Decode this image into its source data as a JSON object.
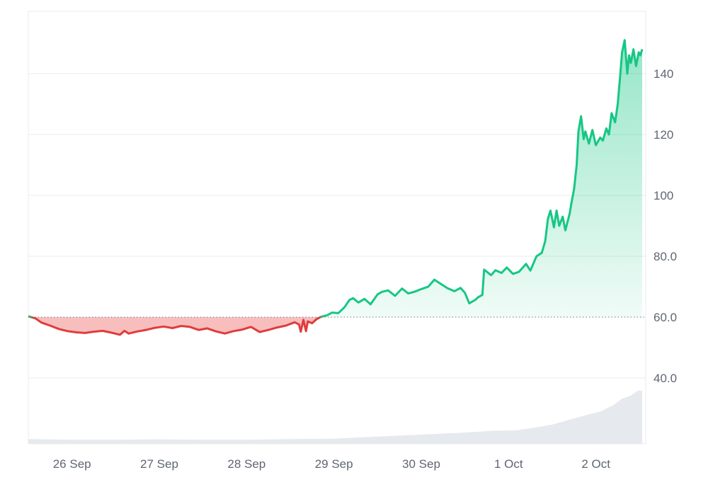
{
  "chart_data": {
    "type": "area",
    "title": "",
    "xlabel": "",
    "ylabel": "",
    "baseline": 60.0,
    "ylim": [
      21,
      152
    ],
    "grid": true,
    "legend": "none",
    "x_ticks": [
      {
        "label": "26 Sep",
        "t": 0.5
      },
      {
        "label": "27 Sep",
        "t": 1.5
      },
      {
        "label": "28 Sep",
        "t": 2.5
      },
      {
        "label": "29 Sep",
        "t": 3.5
      },
      {
        "label": "30 Sep",
        "t": 4.5
      },
      {
        "label": "1 Oct",
        "t": 5.5
      },
      {
        "label": "2 Oct",
        "t": 6.5
      }
    ],
    "y_ticks": [
      {
        "label": "140",
        "value": 140
      },
      {
        "label": "120",
        "value": 120
      },
      {
        "label": "100",
        "value": 100
      },
      {
        "label": "80.0",
        "value": 80
      },
      {
        "label": "60.0",
        "value": 60
      },
      {
        "label": "40.0",
        "value": 40
      }
    ],
    "xlim_days": [
      0,
      7.03
    ],
    "series": [
      {
        "values_t": [
          0.0,
          0.08,
          0.15,
          0.25,
          0.35,
          0.45,
          0.55,
          0.65,
          0.75,
          0.85,
          0.95,
          1.05,
          1.1,
          1.15,
          1.25,
          1.35,
          1.45,
          1.55,
          1.65,
          1.75,
          1.85,
          1.95,
          2.05,
          2.15,
          2.25,
          2.35,
          2.45,
          2.55,
          2.65,
          2.75,
          2.85,
          2.95,
          3.05,
          3.1,
          3.12,
          3.15,
          3.18,
          3.2,
          3.25,
          3.3,
          3.35,
          3.42,
          3.48,
          3.55,
          3.62,
          3.68,
          3.72,
          3.78,
          3.85,
          3.92,
          4.0,
          4.05,
          4.12,
          4.2,
          4.28,
          4.35,
          4.42,
          4.5,
          4.58,
          4.65,
          4.72,
          4.8,
          4.88,
          4.95,
          5.0,
          5.05,
          5.12,
          5.15,
          5.2,
          5.22,
          5.3,
          5.35,
          5.42,
          5.48,
          5.55,
          5.62,
          5.7,
          5.75,
          5.82,
          5.88,
          5.92,
          5.95,
          5.98,
          6.02,
          6.05,
          6.08,
          6.12,
          6.15,
          6.2,
          6.22,
          6.25,
          6.28,
          6.3,
          6.33,
          6.36,
          6.38,
          6.42,
          6.46,
          6.5,
          6.55,
          6.58,
          6.62,
          6.65,
          6.68,
          6.72,
          6.75,
          6.78,
          6.8,
          6.83,
          6.86,
          6.88,
          6.9,
          6.93,
          6.96,
          6.99,
          7.01,
          7.03
        ],
        "values": [
          60.3,
          59.6,
          58.2,
          57.2,
          56.1,
          55.4,
          55.0,
          54.8,
          55.2,
          55.5,
          54.9,
          54.2,
          55.5,
          54.6,
          55.3,
          55.8,
          56.5,
          56.9,
          56.4,
          57.1,
          56.8,
          55.8,
          56.3,
          55.3,
          54.6,
          55.4,
          55.9,
          56.8,
          55.1,
          55.8,
          56.6,
          57.2,
          58.3,
          57.6,
          55.2,
          59.1,
          55.4,
          58.6,
          58.0,
          59.3,
          60.1,
          60.6,
          61.5,
          61.3,
          63.2,
          65.7,
          66.2,
          64.8,
          66.0,
          64.2,
          67.5,
          68.3,
          68.8,
          67.0,
          69.4,
          67.8,
          68.3,
          69.2,
          70.0,
          72.3,
          71.0,
          69.5,
          68.5,
          69.6,
          68.0,
          64.5,
          65.7,
          66.5,
          67.3,
          75.6,
          73.8,
          75.4,
          74.5,
          76.3,
          74.2,
          74.9,
          77.5,
          75.3,
          80.0,
          81.1,
          85.0,
          92.2,
          95.0,
          89.5,
          95.0,
          90.0,
          93.0,
          88.5,
          94.0,
          97.5,
          102.0,
          110.0,
          121.0,
          126.0,
          118.5,
          121.0,
          117.0,
          121.5,
          116.5,
          119.0,
          118.0,
          122.0,
          120.0,
          127.0,
          124.0,
          130.0,
          140.0,
          147.0,
          151.0,
          140.0,
          146.0,
          143.5,
          148.0,
          142.5,
          147.0,
          146.0,
          148.0
        ]
      }
    ],
    "volume": {
      "values_t": [
        0.0,
        0.5,
        1.0,
        1.5,
        2.0,
        2.5,
        3.0,
        3.5,
        3.8,
        4.2,
        4.6,
        5.0,
        5.3,
        5.6,
        5.8,
        6.0,
        6.2,
        6.4,
        6.55,
        6.7,
        6.8,
        6.9,
        6.98,
        7.03
      ],
      "values": [
        3,
        2.5,
        2.5,
        2.8,
        2.5,
        2.5,
        3,
        3.2,
        4,
        5,
        6,
        7,
        8,
        8.5,
        10,
        12,
        15,
        18,
        20,
        24,
        28,
        30,
        33,
        33
      ]
    },
    "colors": {
      "up_line": "#16c784",
      "down_line": "#e03c3c",
      "up_fill": "#16c784",
      "down_fill": "#f7b3b3",
      "baseline_dots": "#8a8f98",
      "volume_fill": "#e6e9ee",
      "grid": "#e8ebef",
      "tick_text": "#5f6672"
    }
  }
}
